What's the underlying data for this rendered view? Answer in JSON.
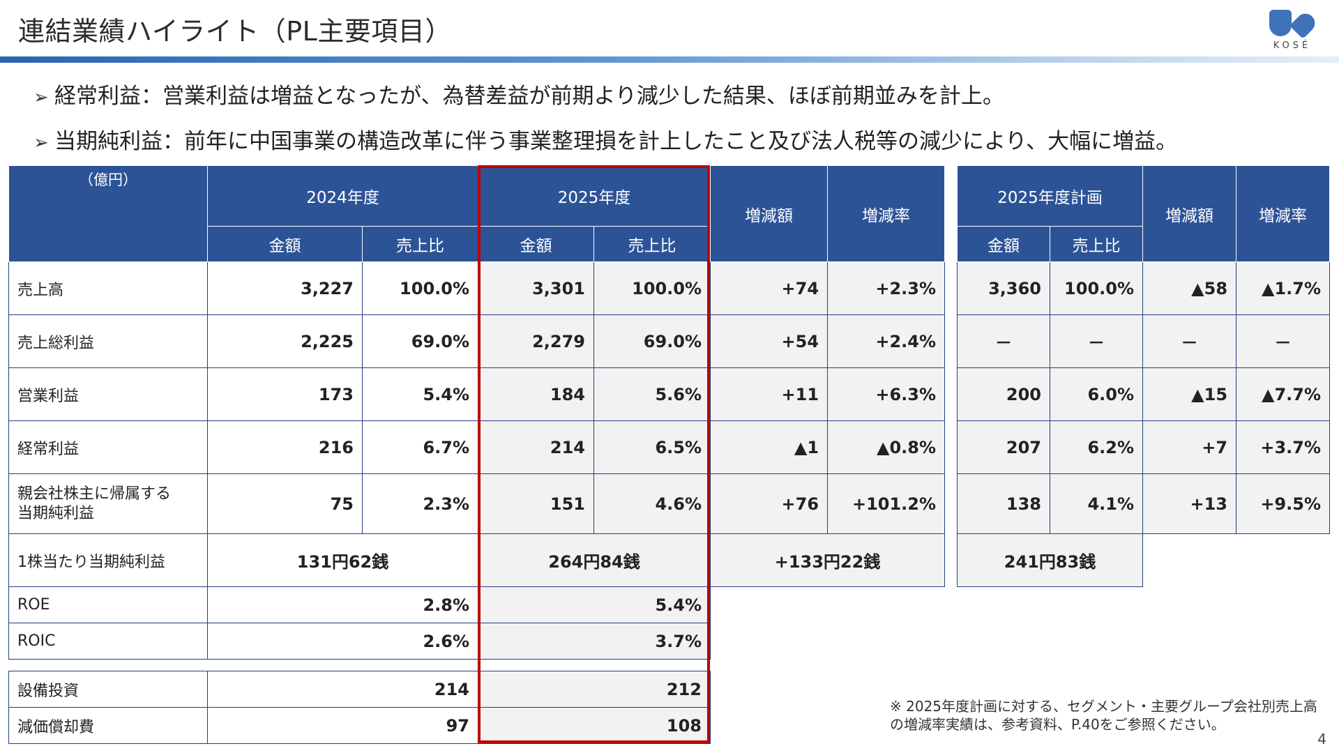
{
  "title": "連結業績ハイライト（PL主要項目）",
  "logo": {
    "text": "KOSÉ",
    "icon": "kose-logo-icon",
    "color": "#3f72b8"
  },
  "bullets": [
    {
      "marker": "➢",
      "text": "経常利益：営業利益は増益となったが、為替差益が前期より減少した結果、ほぼ前期並みを計上。"
    },
    {
      "marker": "➢",
      "text": "当期純利益：前年に中国事業の構造改革に伴う事業整理損を計上したこと及び法人税等の減少により、大幅に増益。"
    }
  ],
  "table": {
    "unit": "（億円）",
    "headers": {
      "fy2024": "2024年度",
      "fy2025": "2025年度",
      "plan2025": "2025年度計画",
      "amount": "金額",
      "ratio": "売上比",
      "change": "増減額",
      "change_rate": "増減率"
    },
    "rows": [
      {
        "label": "売上高",
        "a24": "3,227",
        "r24": "100.0%",
        "a25": "3,301",
        "r25": "100.0%",
        "chg": "+74",
        "rate": "+2.3%",
        "ap": "3,360",
        "rp": "100.0%",
        "chgp": "▲58",
        "ratep": "▲1.7%"
      },
      {
        "label": "売上総利益",
        "a24": "2,225",
        "r24": "69.0%",
        "a25": "2,279",
        "r25": "69.0%",
        "chg": "+54",
        "rate": "+2.4%",
        "ap": "－",
        "rp": "－",
        "chgp": "－",
        "ratep": "－"
      },
      {
        "label": "営業利益",
        "a24": "173",
        "r24": "5.4%",
        "a25": "184",
        "r25": "5.6%",
        "chg": "+11",
        "rate": "+6.3%",
        "ap": "200",
        "rp": "6.0%",
        "chgp": "▲15",
        "ratep": "▲7.7%"
      },
      {
        "label": "経常利益",
        "a24": "216",
        "r24": "6.7%",
        "a25": "214",
        "r25": "6.5%",
        "chg": "▲1",
        "rate": "▲0.8%",
        "ap": "207",
        "rp": "6.2%",
        "chgp": "+7",
        "ratep": "+3.7%"
      },
      {
        "label_line1": "親会社株主に帰属する",
        "label_line2": "当期純利益",
        "a24": "75",
        "r24": "2.3%",
        "a25": "151",
        "r25": "4.6%",
        "chg": "+76",
        "rate": "+101.2%",
        "ap": "138",
        "rp": "4.1%",
        "chgp": "+13",
        "ratep": "+9.5%"
      }
    ],
    "eps": {
      "label": "1株当たり当期純利益",
      "v24": "131円62銭",
      "v25": "264円84銭",
      "chg": "+133円22銭",
      "plan": "241円83銭"
    },
    "roe": {
      "label": "ROE",
      "v24": "2.8%",
      "v25": "5.4%"
    },
    "roic": {
      "label": "ROIC",
      "v24": "2.6%",
      "v25": "3.7%"
    },
    "capex": {
      "label": "設備投資",
      "v24": "214",
      "v25": "212"
    },
    "depr": {
      "label": "減価償却費",
      "v24": "97",
      "v25": "108"
    }
  },
  "note": {
    "line1": "※ 2025年度計画に対する、セグメント・主要グループ会社別売上高",
    "line2": "の増減率実績は、参考資料、P.40をご参照ください。"
  },
  "page_number": "4"
}
